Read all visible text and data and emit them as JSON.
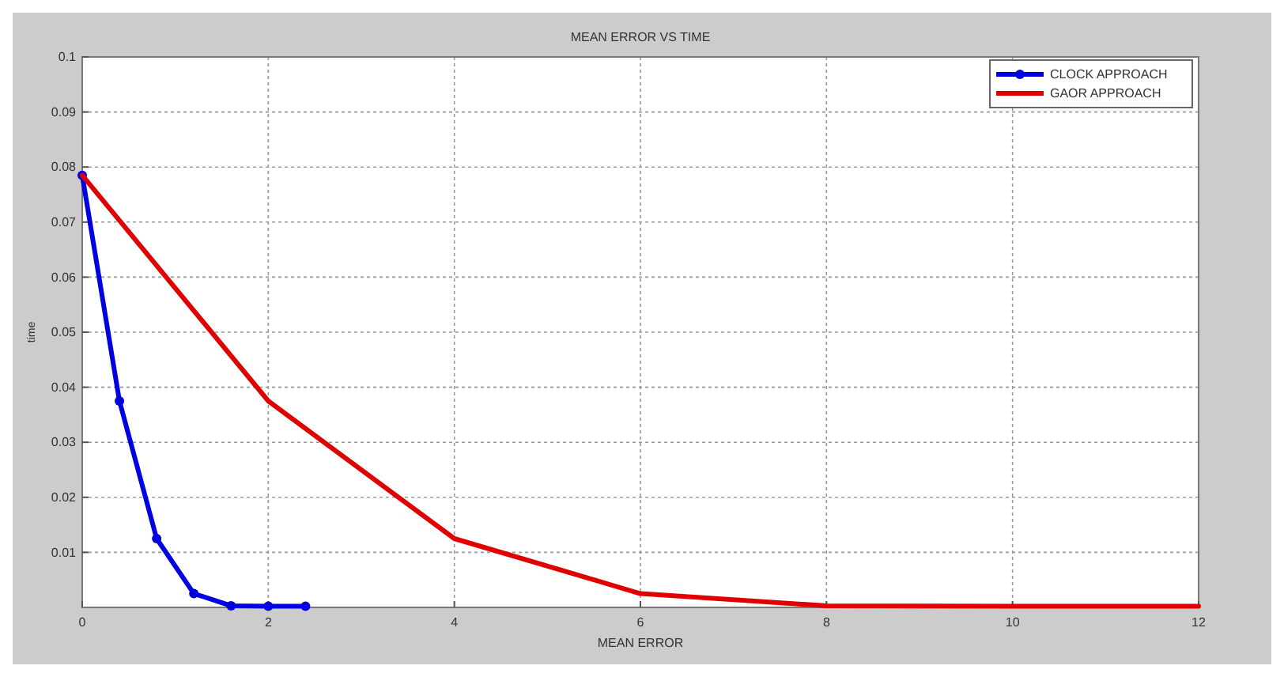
{
  "chart_data": {
    "type": "line",
    "title": "MEAN ERROR VS TIME",
    "xlabel": "MEAN ERROR",
    "ylabel": "time",
    "xlim": [
      0,
      12
    ],
    "xticks": [
      0,
      2,
      4,
      6,
      8,
      10,
      12
    ],
    "ylim": [
      0,
      0.1
    ],
    "yticks": [
      0.01,
      0.02,
      0.03,
      0.04,
      0.05,
      0.06,
      0.07,
      0.08,
      0.09,
      0.1
    ],
    "grid": true,
    "legend": "top right",
    "line_style": "solid",
    "series": [
      {
        "name": "CLOCK APPROACH",
        "color": "#0000e0",
        "marker": "circle",
        "x": [
          0,
          0.4,
          0.8,
          1.2,
          1.6,
          2,
          2.4
        ],
        "values": [
          0.0785,
          0.0375,
          0.0125,
          0.0025,
          0.0003,
          0.0002,
          0.0002
        ]
      },
      {
        "name": "GAOR APPROACH",
        "color": "#e00000",
        "marker": "none",
        "x": [
          0,
          2,
          4,
          6,
          8,
          10,
          12
        ],
        "values": [
          0.0785,
          0.0375,
          0.0125,
          0.0025,
          0.0003,
          0.0002,
          0.0002
        ]
      }
    ]
  }
}
